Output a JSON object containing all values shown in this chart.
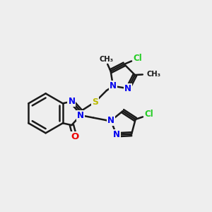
{
  "background_color": "#eeeeee",
  "bond_color": "#1a1a1a",
  "bond_width": 1.8,
  "atom_colors": {
    "N": "#0000ee",
    "O": "#ee0000",
    "S": "#bbbb00",
    "Cl": "#22cc22",
    "C": "#1a1a1a"
  },
  "font_size": 8.5,
  "dbo": 0.09
}
